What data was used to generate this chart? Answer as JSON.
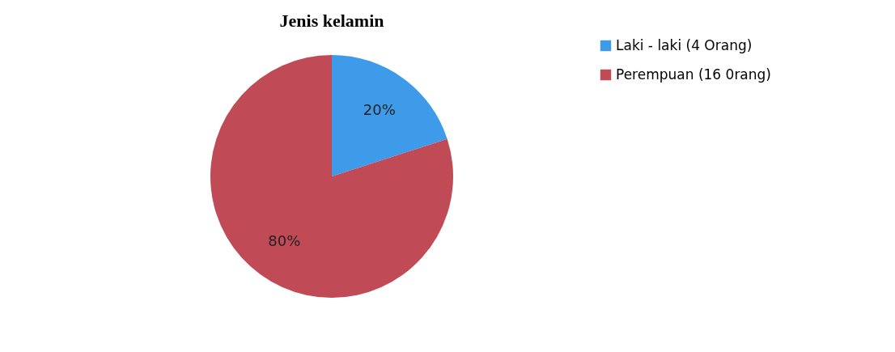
{
  "chart_data": {
    "type": "pie",
    "title": "Jenis kelamin",
    "categories": [
      "Laki - laki (4 Orang)",
      "Perempuan (16 0rang)"
    ],
    "values": [
      20,
      80
    ],
    "colors": [
      "#3d9be9",
      "#c04a55"
    ],
    "value_labels": [
      "20%",
      "80%"
    ],
    "legend": "right"
  }
}
